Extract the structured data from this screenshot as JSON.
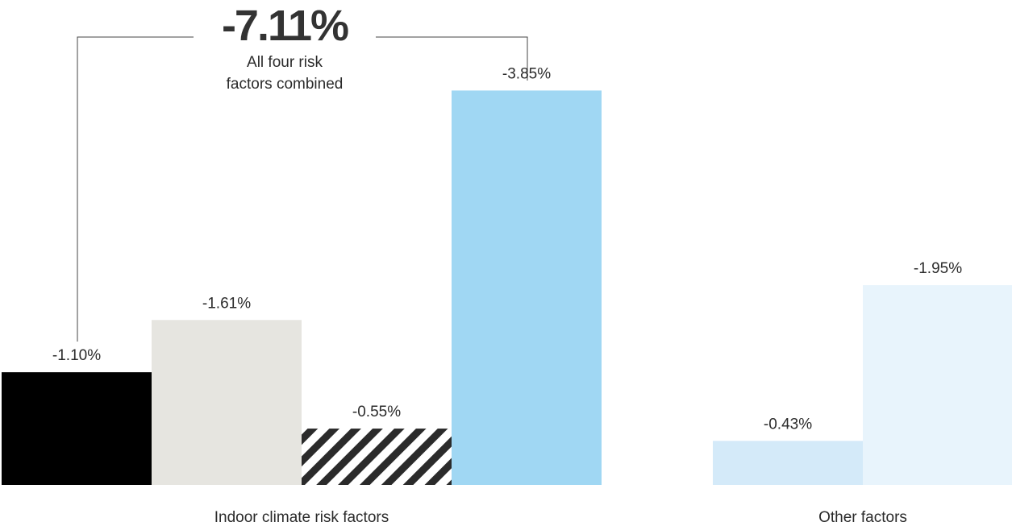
{
  "chart_data": {
    "type": "bar",
    "ylim": [
      0,
      4.6
    ],
    "bars": [
      {
        "value_label": "-1.10%",
        "value": -1.1,
        "group": 0,
        "color": "#000000",
        "pattern": "solid"
      },
      {
        "value_label": "-1.61%",
        "value": -1.61,
        "group": 0,
        "color": "#e6e5e0",
        "pattern": "solid"
      },
      {
        "value_label": "-0.55%",
        "value": -0.55,
        "group": 0,
        "color": "#2b2b2b",
        "pattern": "hatched"
      },
      {
        "value_label": "-3.85%",
        "value": -3.85,
        "group": 0,
        "color": "#a0d7f3",
        "pattern": "solid"
      },
      {
        "value_label": "-0.43%",
        "value": -0.43,
        "group": 1,
        "color": "#d4eaf9",
        "pattern": "solid"
      },
      {
        "value_label": "-1.95%",
        "value": -1.95,
        "group": 1,
        "color": "#e8f4fc",
        "pattern": "solid"
      }
    ],
    "groups": [
      {
        "label": "Indoor climate risk factors"
      },
      {
        "label": "Other factors"
      }
    ],
    "total": {
      "value_label": "-7.11%",
      "caption_line1": "All four risk",
      "caption_line2": "factors combined"
    }
  }
}
